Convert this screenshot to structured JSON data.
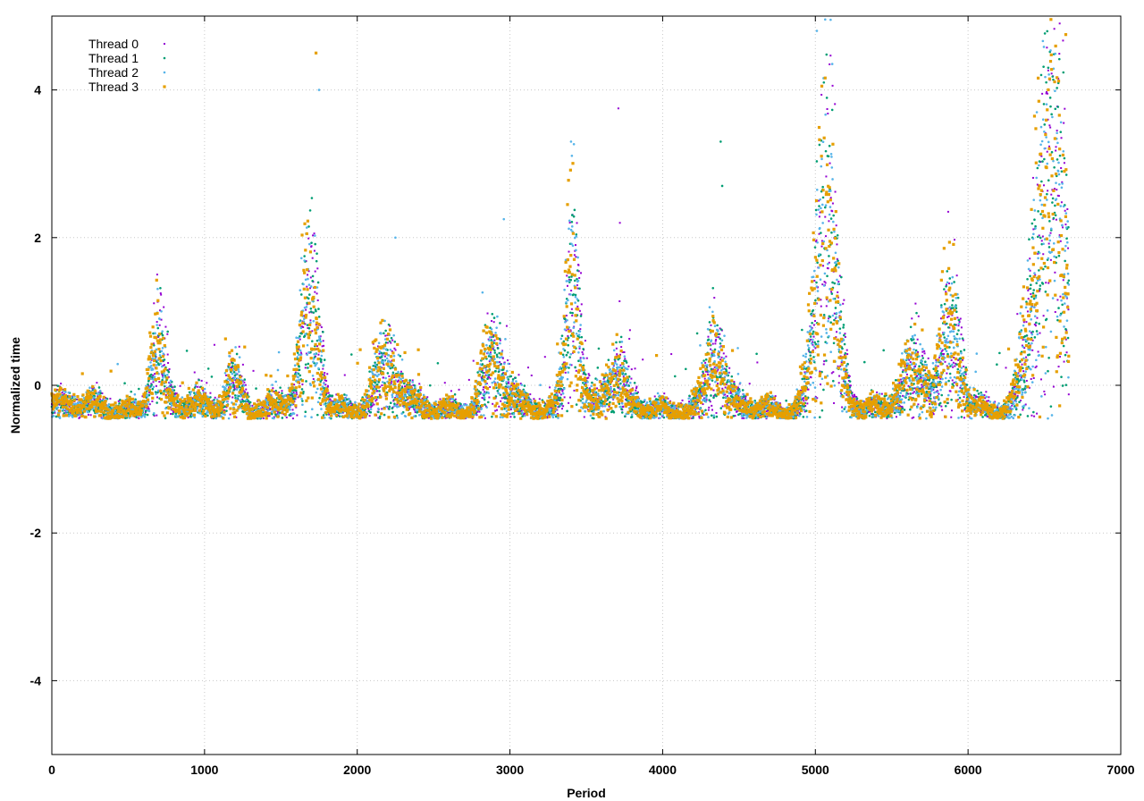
{
  "chart_data": {
    "type": "scatter",
    "title": "",
    "xlabel": "Period",
    "ylabel": "Normalized time",
    "xlim": [
      0,
      7000
    ],
    "ylim": [
      -5,
      5
    ],
    "xticks": [
      0,
      1000,
      2000,
      3000,
      4000,
      5000,
      6000,
      7000
    ],
    "yticks": [
      -4,
      -2,
      0,
      2,
      4
    ],
    "xtick_labels": [
      "0",
      "1000",
      "2000",
      "3000",
      "4000",
      "5000",
      "6000",
      "7000"
    ],
    "ytick_labels": [
      "-4",
      "-2",
      "0",
      "2",
      "4"
    ],
    "grid": true,
    "legend_position": "top-left",
    "x_max_period": 6660,
    "baseline": -0.3,
    "series": [
      {
        "name": "Thread 0",
        "color": "#9400d3",
        "marker": "plus-icon"
      },
      {
        "name": "Thread 1",
        "color": "#009e73",
        "marker": "x-icon"
      },
      {
        "name": "Thread 2",
        "color": "#56b4e9",
        "marker": "star-icon"
      },
      {
        "name": "Thread 3",
        "color": "#e69f00",
        "marker": "square-icon"
      }
    ],
    "bursts": [
      {
        "period": 700,
        "width": 60,
        "peak": 0.8
      },
      {
        "period": 1200,
        "width": 70,
        "peak": 0.4
      },
      {
        "period": 1700,
        "width": 80,
        "peak": 1.3
      },
      {
        "period": 2200,
        "width": 100,
        "peak": 0.5
      },
      {
        "period": 2900,
        "width": 90,
        "peak": 0.6
      },
      {
        "period": 3420,
        "width": 60,
        "peak": 1.8
      },
      {
        "period": 3700,
        "width": 80,
        "peak": 0.4
      },
      {
        "period": 4350,
        "width": 70,
        "peak": 0.7
      },
      {
        "period": 5080,
        "width": 90,
        "peak": 2.6
      },
      {
        "period": 5650,
        "width": 120,
        "peak": 0.5
      },
      {
        "period": 5900,
        "width": 80,
        "peak": 1.0
      },
      {
        "period": 6550,
        "width": 140,
        "peak": 3.0
      }
    ],
    "outliers": [
      {
        "series": "Thread 0",
        "x": 690,
        "y": 1.5
      },
      {
        "series": "Thread 0",
        "x": 3710,
        "y": 3.75
      },
      {
        "series": "Thread 0",
        "x": 3720,
        "y": 2.2
      },
      {
        "series": "Thread 0",
        "x": 5870,
        "y": 2.35
      },
      {
        "series": "Thread 0",
        "x": 6600,
        "y": 4.9
      },
      {
        "series": "Thread 0",
        "x": 6520,
        "y": 3.95
      },
      {
        "series": "Thread 1",
        "x": 4380,
        "y": 3.3
      },
      {
        "series": "Thread 1",
        "x": 4390,
        "y": 2.7
      },
      {
        "series": "Thread 2",
        "x": 1750,
        "y": 4.0
      },
      {
        "series": "Thread 2",
        "x": 2250,
        "y": 2.0
      },
      {
        "series": "Thread 2",
        "x": 2960,
        "y": 2.25
      },
      {
        "series": "Thread 2",
        "x": 5100,
        "y": 4.95
      },
      {
        "series": "Thread 2",
        "x": 5010,
        "y": 4.8
      },
      {
        "series": "Thread 2",
        "x": 3400,
        "y": 3.3
      },
      {
        "series": "Thread 3",
        "x": 1730,
        "y": 4.5
      },
      {
        "series": "Thread 3",
        "x": 6640,
        "y": 4.75
      },
      {
        "series": "Thread 3",
        "x": 6600,
        "y": 3.2
      }
    ]
  }
}
